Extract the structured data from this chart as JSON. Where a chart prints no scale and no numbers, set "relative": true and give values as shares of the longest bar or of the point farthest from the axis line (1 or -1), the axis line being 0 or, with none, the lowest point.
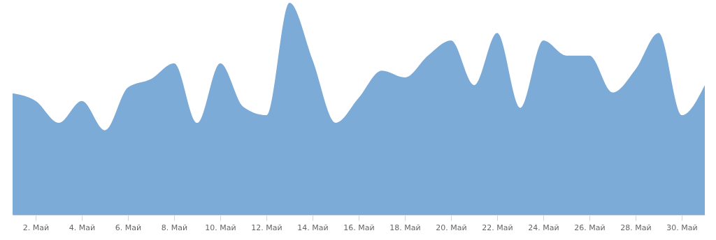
{
  "chart_data": {
    "type": "area",
    "relative": true,
    "color": "#7cabd8",
    "x": [
      "--05-01",
      "--05-02",
      "--05-03",
      "--05-04",
      "--05-05",
      "--05-06",
      "--05-07",
      "--05-08",
      "--05-09",
      "--05-10",
      "--05-11",
      "--05-12",
      "--05-13",
      "--05-14",
      "--05-15",
      "--05-16",
      "--05-17",
      "--05-18",
      "--05-19",
      "--05-20",
      "--05-21",
      "--05-22",
      "--05-23",
      "--05-24",
      "--05-25",
      "--05-26",
      "--05-27",
      "--05-28",
      "--05-29",
      "--05-30",
      "--05-31"
    ],
    "values": [
      0.573,
      0.537,
      0.434,
      0.537,
      0.399,
      0.601,
      0.641,
      0.715,
      0.434,
      0.715,
      0.509,
      0.47,
      1,
      0.73,
      0.434,
      0.552,
      0.68,
      0.648,
      0.751,
      0.822,
      0.612,
      0.858,
      0.505,
      0.822,
      0.751,
      0.751,
      0.577,
      0.687,
      0.858,
      0.47,
      0.612
    ],
    "xlim": [
      "--05-01",
      "--05-31"
    ],
    "xticks": [
      {
        "value": "--05-02",
        "label": "2. Май"
      },
      {
        "value": "--05-04",
        "label": "4. Май"
      },
      {
        "value": "--05-06",
        "label": "6. Май"
      },
      {
        "value": "--05-08",
        "label": "8. Май"
      },
      {
        "value": "--05-10",
        "label": "10. Май"
      },
      {
        "value": "--05-12",
        "label": "12. Май"
      },
      {
        "value": "--05-14",
        "label": "14. Май"
      },
      {
        "value": "--05-16",
        "label": "16. Май"
      },
      {
        "value": "--05-18",
        "label": "18. Май"
      },
      {
        "value": "--05-20",
        "label": "20. Май"
      },
      {
        "value": "--05-22",
        "label": "22. Май"
      },
      {
        "value": "--05-24",
        "label": "24. Май"
      },
      {
        "value": "--05-26",
        "label": "26. Май"
      },
      {
        "value": "--05-28",
        "label": "28. Май"
      },
      {
        "value": "--05-30",
        "label": "30. Май"
      }
    ]
  }
}
